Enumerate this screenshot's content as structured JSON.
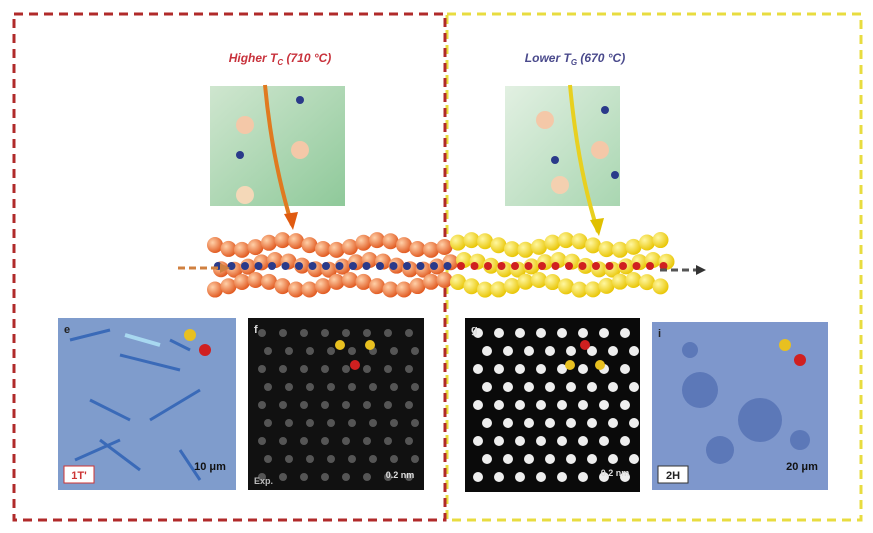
{
  "left": {
    "title": {
      "main": "Higher T",
      "sub": "C",
      "rest": " (710 °C)"
    },
    "panels": [
      {
        "letter": "e",
        "phase": "1T'",
        "scale": "10 μm"
      },
      {
        "letter": "f",
        "note": "Exp.",
        "scale": "0.2 nm"
      }
    ]
  },
  "right": {
    "title": {
      "main": "Lower T",
      "sub": "G",
      "rest": " (670 °C)"
    },
    "panels": [
      {
        "letter": "g",
        "scale": "0.2 nm"
      },
      {
        "letter": "i",
        "phase": "2H",
        "scale": "20 μm"
      }
    ]
  }
}
